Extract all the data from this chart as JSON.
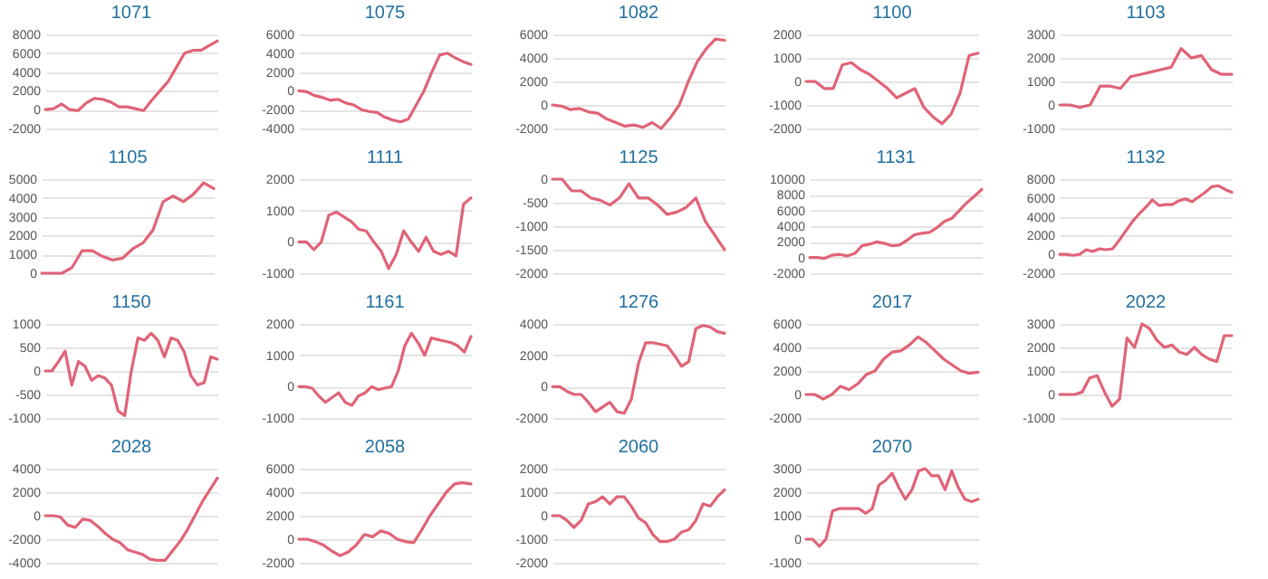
{
  "chart_data": [
    {
      "type": "line",
      "title": "1071",
      "categories": [
        null,
        null,
        null,
        null,
        null,
        null,
        null,
        null,
        null,
        null,
        null,
        null,
        null,
        null,
        null,
        null,
        null,
        null,
        null,
        null,
        null,
        null
      ],
      "values": [
        0,
        100,
        600,
        0,
        -100,
        700,
        1200,
        1100,
        800,
        300,
        300,
        100,
        -100,
        1000,
        2000,
        3000,
        4500,
        6000,
        6300,
        6300,
        6800,
        7300
      ],
      "color": "#e06377",
      "ylim": [
        -2000,
        8000
      ],
      "yticks": [
        -2000,
        0,
        2000,
        4000,
        6000,
        8000
      ],
      "grid": "y",
      "tick_labels": "y"
    },
    {
      "type": "line",
      "title": "1075",
      "categories": [
        null,
        null,
        null,
        null,
        null,
        null,
        null,
        null,
        null,
        null,
        null,
        null,
        null,
        null,
        null,
        null,
        null,
        null,
        null,
        null,
        null,
        null,
        null
      ],
      "values": [
        0,
        -100,
        -500,
        -700,
        -1000,
        -900,
        -1300,
        -1500,
        -2000,
        -2200,
        -2300,
        -2800,
        -3100,
        -3300,
        -3000,
        -1500,
        0,
        2000,
        3800,
        4000,
        3500,
        3100,
        2800
      ],
      "color": "#e06377",
      "ylim": [
        -4000,
        6000
      ],
      "yticks": [
        -4000,
        -2000,
        0,
        2000,
        4000,
        6000
      ],
      "grid": "y",
      "tick_labels": "y"
    },
    {
      "type": "line",
      "title": "1082",
      "categories": [
        null,
        null,
        null,
        null,
        null,
        null,
        null,
        null,
        null,
        null,
        null,
        null,
        null,
        null,
        null,
        null,
        null,
        null,
        null,
        null
      ],
      "values": [
        0,
        -100,
        -400,
        -300,
        -600,
        -700,
        -1200,
        -1500,
        -1800,
        -1700,
        -1900,
        -1500,
        -2000,
        -1100,
        0,
        2000,
        3700,
        4800,
        5600,
        5500
      ],
      "color": "#e06377",
      "ylim": [
        -2000,
        6000
      ],
      "yticks": [
        -2000,
        0,
        2000,
        4000,
        6000
      ],
      "grid": "y",
      "tick_labels": "y"
    },
    {
      "type": "line",
      "title": "1100",
      "categories": [
        null,
        null,
        null,
        null,
        null,
        null,
        null,
        null,
        null,
        null,
        null,
        null,
        null,
        null,
        null,
        null,
        null,
        null,
        null,
        null
      ],
      "values": [
        0,
        0,
        -300,
        -300,
        700,
        800,
        500,
        300,
        0,
        -300,
        -700,
        -500,
        -300,
        -1100,
        -1500,
        -1800,
        -1400,
        -500,
        1100,
        1200
      ],
      "color": "#e06377",
      "ylim": [
        -2000,
        2000
      ],
      "yticks": [
        -2000,
        -1000,
        0,
        1000,
        2000
      ],
      "grid": "y",
      "tick_labels": "y"
    },
    {
      "type": "line",
      "title": "1103",
      "categories": [
        null,
        null,
        null,
        null,
        null,
        null,
        null,
        null,
        null,
        null,
        null,
        null,
        null,
        null,
        null,
        null,
        null,
        null
      ],
      "values": [
        0,
        0,
        -100,
        0,
        800,
        800,
        700,
        1200,
        1300,
        1400,
        1500,
        1600,
        2400,
        2000,
        2100,
        1500,
        1300,
        1300
      ],
      "color": "#e06377",
      "ylim": [
        -1000,
        3000
      ],
      "yticks": [
        -1000,
        0,
        1000,
        2000,
        3000
      ],
      "grid": "y",
      "tick_labels": "y"
    },
    {
      "type": "line",
      "title": "1105",
      "categories": [
        null,
        null,
        null,
        null,
        null,
        null,
        null,
        null,
        null,
        null,
        null,
        null,
        null,
        null,
        null,
        null,
        null,
        null
      ],
      "values": [
        0,
        0,
        0,
        300,
        1200,
        1200,
        900,
        700,
        800,
        1300,
        1600,
        2300,
        3800,
        4100,
        3800,
        4200,
        4800,
        4500
      ],
      "color": "#e06377",
      "ylim": [
        0,
        5000
      ],
      "yticks": [
        0,
        1000,
        2000,
        3000,
        4000,
        5000
      ],
      "grid": "y",
      "tick_labels": "y"
    },
    {
      "type": "line",
      "title": "1111",
      "categories": [
        null,
        null,
        null,
        null,
        null,
        null,
        null,
        null,
        null,
        null,
        null,
        null,
        null,
        null,
        null,
        null,
        null,
        null,
        null,
        null,
        null,
        null,
        null,
        null
      ],
      "values": [
        0,
        0,
        -250,
        0,
        850,
        950,
        800,
        650,
        400,
        350,
        0,
        -300,
        -850,
        -400,
        350,
        0,
        -300,
        150,
        -300,
        -400,
        -300,
        -450,
        1200,
        1400
      ],
      "color": "#e06377",
      "ylim": [
        -1000,
        2000
      ],
      "yticks": [
        -1000,
        0,
        1000,
        2000
      ],
      "grid": "y",
      "tick_labels": "y"
    },
    {
      "type": "line",
      "title": "1125",
      "categories": [
        null,
        null,
        null,
        null,
        null,
        null,
        null,
        null,
        null,
        null,
        null,
        null,
        null,
        null,
        null,
        null,
        null,
        null,
        null
      ],
      "values": [
        0,
        0,
        -250,
        -250,
        -400,
        -450,
        -550,
        -400,
        -100,
        -400,
        -400,
        -550,
        -750,
        -700,
        -600,
        -400,
        -900,
        -1200,
        -1500
      ],
      "color": "#e06377",
      "ylim": [
        -2000,
        0
      ],
      "yticks": [
        -2000,
        -1500,
        -1000,
        -500,
        0
      ],
      "grid": "y",
      "tick_labels": "y"
    },
    {
      "type": "line",
      "title": "1131",
      "categories": [
        null,
        null,
        null,
        null,
        null,
        null,
        null,
        null,
        null,
        null,
        null,
        null,
        null,
        null,
        null,
        null,
        null,
        null,
        null,
        null,
        null,
        null,
        null,
        null
      ],
      "values": [
        0,
        0,
        -100,
        300,
        400,
        200,
        500,
        1500,
        1700,
        2000,
        1800,
        1500,
        1600,
        2200,
        2900,
        3100,
        3200,
        3800,
        4600,
        5000,
        6000,
        7000,
        7800,
        8700
      ],
      "color": "#e06377",
      "ylim": [
        -2000,
        10000
      ],
      "yticks": [
        -2000,
        0,
        2000,
        4000,
        6000,
        8000,
        10000
      ],
      "grid": "y",
      "tick_labels": "y"
    },
    {
      "type": "line",
      "title": "1132",
      "categories": [
        null,
        null,
        null,
        null,
        null,
        null,
        null,
        null,
        null,
        null,
        null,
        null,
        null,
        null,
        null,
        null,
        null,
        null,
        null,
        null,
        null,
        null,
        null,
        null,
        null,
        null,
        null
      ],
      "values": [
        0,
        0,
        -100,
        0,
        500,
        300,
        600,
        500,
        600,
        1500,
        2500,
        3500,
        4300,
        5000,
        5800,
        5200,
        5300,
        5300,
        5700,
        5900,
        5600,
        6100,
        6600,
        7200,
        7300,
        6900,
        6600
      ],
      "color": "#e06377",
      "ylim": [
        -2000,
        8000
      ],
      "yticks": [
        -2000,
        0,
        2000,
        4000,
        6000,
        8000
      ],
      "grid": "y",
      "tick_labels": "y"
    },
    {
      "type": "line",
      "title": "1150",
      "categories": [
        null,
        null,
        null,
        null,
        null,
        null,
        null,
        null,
        null,
        null,
        null,
        null,
        null,
        null,
        null,
        null,
        null,
        null,
        null,
        null,
        null,
        null,
        null,
        null,
        null,
        null,
        null
      ],
      "values": [
        0,
        0,
        200,
        420,
        -300,
        200,
        100,
        -200,
        -100,
        -150,
        -300,
        -850,
        -950,
        0,
        700,
        650,
        800,
        650,
        300,
        700,
        650,
        400,
        -100,
        -300,
        -250,
        300,
        250
      ],
      "color": "#e06377",
      "ylim": [
        -1000,
        1000
      ],
      "yticks": [
        -1000,
        -500,
        0,
        500,
        1000
      ],
      "grid": "y",
      "tick_labels": "y"
    },
    {
      "type": "line",
      "title": "1161",
      "categories": [
        null,
        null,
        null,
        null,
        null,
        null,
        null,
        null,
        null,
        null,
        null,
        null,
        null,
        null,
        null,
        null,
        null,
        null,
        null,
        null,
        null,
        null,
        null,
        null,
        null,
        null,
        null
      ],
      "values": [
        0,
        0,
        -50,
        -300,
        -500,
        -350,
        -200,
        -500,
        -600,
        -300,
        -200,
        0,
        -100,
        -50,
        0,
        500,
        1300,
        1700,
        1400,
        1000,
        1550,
        1500,
        1450,
        1400,
        1300,
        1100,
        1600
      ],
      "color": "#e06377",
      "ylim": [
        -1000,
        2000
      ],
      "yticks": [
        -1000,
        0,
        1000,
        2000
      ],
      "grid": "y",
      "tick_labels": "y"
    },
    {
      "type": "line",
      "title": "1276",
      "categories": [
        null,
        null,
        null,
        null,
        null,
        null,
        null,
        null,
        null,
        null,
        null,
        null,
        null,
        null,
        null,
        null,
        null,
        null,
        null,
        null,
        null,
        null,
        null,
        null,
        null
      ],
      "values": [
        0,
        0,
        -300,
        -500,
        -500,
        -1000,
        -1600,
        -1300,
        -1000,
        -1600,
        -1700,
        -800,
        1500,
        2800,
        2800,
        2700,
        2600,
        2000,
        1300,
        1600,
        3700,
        3900,
        3800,
        3500,
        3400
      ],
      "color": "#e06377",
      "ylim": [
        -2000,
        4000
      ],
      "yticks": [
        -2000,
        0,
        2000,
        4000
      ],
      "grid": "y",
      "tick_labels": "y"
    },
    {
      "type": "line",
      "title": "2017",
      "categories": [
        null,
        null,
        null,
        null,
        null,
        null,
        null,
        null,
        null,
        null,
        null,
        null,
        null,
        null,
        null,
        null,
        null,
        null,
        null,
        null,
        null
      ],
      "values": [
        0,
        0,
        -400,
        0,
        700,
        400,
        900,
        1700,
        2000,
        3000,
        3600,
        3700,
        4200,
        4900,
        4400,
        3700,
        3000,
        2500,
        2000,
        1800,
        1900
      ],
      "color": "#e06377",
      "ylim": [
        -2000,
        6000
      ],
      "yticks": [
        -2000,
        0,
        2000,
        4000,
        6000
      ],
      "grid": "y",
      "tick_labels": "y"
    },
    {
      "type": "line",
      "title": "2022",
      "categories": [
        null,
        null,
        null,
        null,
        null,
        null,
        null,
        null,
        null,
        null,
        null,
        null,
        null,
        null,
        null,
        null,
        null,
        null,
        null,
        null,
        null,
        null,
        null,
        null
      ],
      "values": [
        0,
        0,
        0,
        100,
        700,
        800,
        100,
        -500,
        -200,
        2400,
        2000,
        3000,
        2800,
        2300,
        2000,
        2100,
        1800,
        1700,
        2000,
        1700,
        1500,
        1400,
        2500,
        2500
      ],
      "color": "#e06377",
      "ylim": [
        -1000,
        3000
      ],
      "yticks": [
        -1000,
        0,
        1000,
        2000,
        3000
      ],
      "grid": "y",
      "tick_labels": "y"
    },
    {
      "type": "line",
      "title": "2028",
      "categories": [
        null,
        null,
        null,
        null,
        null,
        null,
        null,
        null,
        null,
        null,
        null,
        null,
        null,
        null,
        null,
        null,
        null,
        null,
        null,
        null,
        null,
        null,
        null,
        null
      ],
      "values": [
        0,
        0,
        -100,
        -800,
        -1000,
        -300,
        -400,
        -900,
        -1500,
        -2000,
        -2300,
        -2900,
        -3100,
        -3300,
        -3700,
        -3800,
        -3800,
        -3000,
        -2200,
        -1200,
        0,
        1200,
        2200,
        3200
      ],
      "color": "#e06377",
      "ylim": [
        -4000,
        4000
      ],
      "yticks": [
        -4000,
        -2000,
        0,
        2000,
        4000
      ],
      "grid": "y",
      "tick_labels": "y"
    },
    {
      "type": "line",
      "title": "2058",
      "categories": [
        null,
        null,
        null,
        null,
        null,
        null,
        null,
        null,
        null,
        null,
        null,
        null,
        null,
        null,
        null,
        null,
        null,
        null,
        null,
        null,
        null,
        null
      ],
      "values": [
        0,
        0,
        -200,
        -500,
        -1000,
        -1400,
        -1100,
        -500,
        400,
        200,
        700,
        500,
        0,
        -200,
        -300,
        800,
        2000,
        3000,
        4000,
        4700,
        4800,
        4700
      ],
      "color": "#e06377",
      "ylim": [
        -2000,
        6000
      ],
      "yticks": [
        -2000,
        0,
        2000,
        4000,
        6000
      ],
      "grid": "y",
      "tick_labels": "y"
    },
    {
      "type": "line",
      "title": "2060",
      "categories": [
        null,
        null,
        null,
        null,
        null,
        null,
        null,
        null,
        null,
        null,
        null,
        null,
        null,
        null,
        null,
        null,
        null,
        null,
        null,
        null,
        null,
        null,
        null,
        null,
        null
      ],
      "values": [
        0,
        0,
        -200,
        -500,
        -200,
        500,
        600,
        800,
        500,
        800,
        800,
        400,
        -100,
        -300,
        -800,
        -1100,
        -1100,
        -1000,
        -700,
        -600,
        -200,
        500,
        400,
        800,
        1100
      ],
      "color": "#e06377",
      "ylim": [
        -2000,
        2000
      ],
      "yticks": [
        -2000,
        -1000,
        0,
        1000,
        2000
      ],
      "grid": "y",
      "tick_labels": "y"
    },
    {
      "type": "line",
      "title": "2070",
      "categories": [
        null,
        null,
        null,
        null,
        null,
        null,
        null,
        null,
        null,
        null,
        null,
        null,
        null,
        null,
        null,
        null,
        null,
        null,
        null,
        null,
        null,
        null,
        null,
        null,
        null,
        null,
        null
      ],
      "values": [
        0,
        0,
        -300,
        0,
        1200,
        1300,
        1300,
        1300,
        1300,
        1100,
        1300,
        2300,
        2500,
        2800,
        2200,
        1700,
        2100,
        2900,
        3000,
        2700,
        2700,
        2100,
        2900,
        2200,
        1700,
        1600,
        1700
      ],
      "color": "#e06377",
      "ylim": [
        -1000,
        3000
      ],
      "yticks": [
        -1000,
        0,
        1000,
        2000,
        3000
      ],
      "grid": "y",
      "tick_labels": "y"
    }
  ]
}
